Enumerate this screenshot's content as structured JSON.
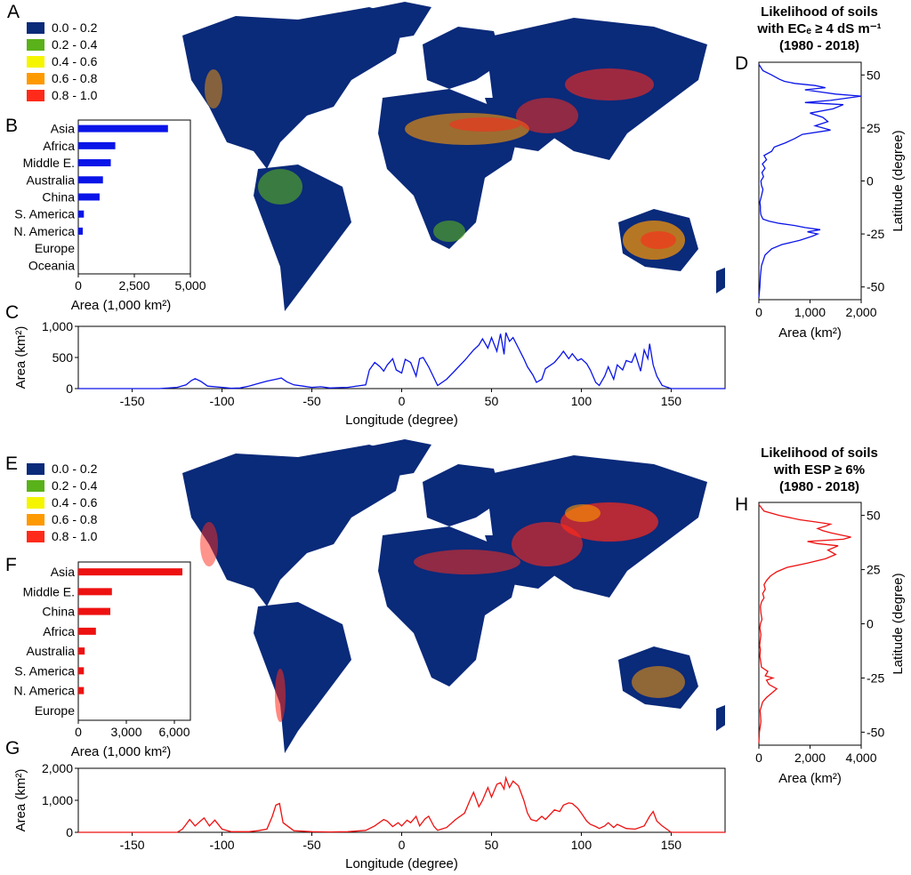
{
  "colors": {
    "top": "#0a14e8",
    "bottom": "#ee1111",
    "land_base": "#0a2a7a",
    "axis": "#000000"
  },
  "panel_labels": {
    "A": "A",
    "B": "B",
    "C": "C",
    "D": "D",
    "E": "E",
    "F": "F",
    "G": "G",
    "H": "H"
  },
  "legend": {
    "items": [
      {
        "label": "0.0 - 0.2",
        "color": "#0a2a7a"
      },
      {
        "label": "0.2 - 0.4",
        "color": "#5ab21a"
      },
      {
        "label": "0.4 - 0.6",
        "color": "#f5f500"
      },
      {
        "label": "0.6 - 0.8",
        "color": "#ff9900"
      },
      {
        "label": "0.8 - 1.0",
        "color": "#ff2a1a"
      }
    ]
  },
  "titles": {
    "top": [
      "Likelihood of soils",
      "with ECₑ ≥ 4 dS m⁻¹",
      "(1980 - 2018)"
    ],
    "bottom": [
      "Likelihood of soils",
      "with ESP ≥ 6%",
      "(1980 - 2018)"
    ]
  },
  "chart_data": [
    {
      "id": "B",
      "type": "bar",
      "orientation": "horizontal",
      "categories": [
        "Asia",
        "Africa",
        "Middle E.",
        "Australia",
        "China",
        "S. America",
        "N. America",
        "Europe",
        "Oceania"
      ],
      "values": [
        4000,
        1650,
        1450,
        1100,
        950,
        250,
        200,
        0,
        0
      ],
      "xlabel": "Area (1,000 km²)",
      "xlim": [
        0,
        5000
      ],
      "xticks": [
        0,
        2500,
        5000
      ],
      "xtick_labels": [
        "0",
        "2,500",
        "5,000"
      ]
    },
    {
      "id": "C",
      "type": "line",
      "xlabel": "Longitude (degree)",
      "ylabel": "Area (km²)",
      "xlim": [
        -180,
        180
      ],
      "ylim": [
        0,
        1000
      ],
      "xticks": [
        -150,
        -100,
        -50,
        0,
        50,
        100,
        150
      ],
      "xtick_labels": [
        "-150",
        "-100",
        "-50",
        "0",
        "50",
        "100",
        "150"
      ],
      "yticks": [
        0,
        500,
        1000
      ],
      "ytick_labels": [
        "0",
        "500",
        "1,000"
      ],
      "x": [
        -180,
        -135,
        -125,
        -120,
        -117,
        -115,
        -112,
        -108,
        -100,
        -95,
        -90,
        -85,
        -80,
        -75,
        -70,
        -67,
        -64,
        -60,
        -55,
        -50,
        -45,
        -40,
        -30,
        -20,
        -18,
        -15,
        -12,
        -10,
        -8,
        -5,
        -3,
        0,
        2,
        5,
        8,
        10,
        12,
        15,
        20,
        25,
        30,
        35,
        40,
        43,
        45,
        48,
        50,
        53,
        55,
        57,
        58,
        60,
        62,
        65,
        68,
        70,
        73,
        75,
        78,
        80,
        85,
        88,
        90,
        93,
        95,
        98,
        100,
        103,
        105,
        108,
        110,
        113,
        115,
        118,
        120,
        123,
        125,
        128,
        130,
        133,
        135,
        137,
        138,
        140,
        142,
        145,
        150,
        180
      ],
      "y": [
        0,
        0,
        20,
        60,
        130,
        160,
        120,
        40,
        20,
        5,
        10,
        40,
        80,
        120,
        150,
        170,
        110,
        60,
        40,
        20,
        30,
        10,
        20,
        60,
        300,
        420,
        350,
        280,
        380,
        480,
        300,
        250,
        470,
        420,
        200,
        480,
        500,
        350,
        50,
        150,
        300,
        450,
        620,
        700,
        800,
        650,
        820,
        600,
        880,
        550,
        900,
        760,
        820,
        650,
        480,
        350,
        220,
        100,
        150,
        320,
        420,
        520,
        600,
        480,
        560,
        450,
        480,
        400,
        300,
        100,
        50,
        200,
        350,
        150,
        380,
        300,
        450,
        420,
        560,
        280,
        620,
        480,
        720,
        380,
        200,
        50,
        0,
        0
      ]
    },
    {
      "id": "D",
      "type": "line",
      "orientation": "vertical",
      "xlabel": "Area (km²)",
      "ylabel": "Latitude (degree)",
      "xlim": [
        0,
        2000
      ],
      "ylim": [
        -56,
        56
      ],
      "xticks": [
        0,
        1000,
        2000
      ],
      "xtick_labels": [
        "0",
        "1,000",
        "2,000"
      ],
      "yticks": [
        -50,
        -25,
        0,
        25,
        50
      ],
      "ytick_labels": [
        "-50",
        "-25",
        "0",
        "25",
        "50"
      ],
      "y": [
        -55,
        -50,
        -45,
        -40,
        -35,
        -32,
        -30,
        -28,
        -26,
        -25,
        -24,
        -23,
        -22,
        -21,
        -20,
        -19,
        -18,
        -16,
        -14,
        -12,
        -10,
        -8,
        -6,
        -4,
        -2,
        0,
        2,
        4,
        6,
        8,
        10,
        12,
        14,
        16,
        18,
        20,
        22,
        24,
        26,
        28,
        30,
        32,
        34,
        36,
        37,
        38,
        39,
        40,
        41,
        42,
        43,
        44,
        45,
        46,
        47,
        48,
        50,
        52,
        55
      ],
      "x": [
        0,
        20,
        30,
        50,
        120,
        250,
        450,
        800,
        1050,
        1150,
        950,
        1200,
        900,
        700,
        400,
        200,
        80,
        40,
        30,
        30,
        20,
        40,
        60,
        80,
        50,
        40,
        90,
        60,
        120,
        70,
        150,
        100,
        250,
        300,
        520,
        700,
        850,
        1400,
        1100,
        1350,
        1250,
        1000,
        1450,
        1650,
        900,
        1400,
        1700,
        2000,
        1500,
        1200,
        900,
        1300,
        1100,
        700,
        500,
        400,
        250,
        80,
        0
      ]
    },
    {
      "id": "F",
      "type": "bar",
      "orientation": "horizontal",
      "categories": [
        "Asia",
        "Middle E.",
        "China",
        "Africa",
        "Australia",
        "S. America",
        "N. America",
        "Europe"
      ],
      "values": [
        6500,
        2100,
        2000,
        1100,
        400,
        350,
        350,
        0
      ],
      "xlabel": "Area (1,000 km²)",
      "xlim": [
        0,
        7000
      ],
      "xticks": [
        0,
        3000,
        6000
      ],
      "xtick_labels": [
        "0",
        "3,000",
        "6,000"
      ]
    },
    {
      "id": "G",
      "type": "line",
      "xlabel": "Longitude (degree)",
      "ylabel": "Area (km²)",
      "xlim": [
        -180,
        180
      ],
      "ylim": [
        0,
        2000
      ],
      "xticks": [
        -150,
        -100,
        -50,
        0,
        50,
        100,
        150
      ],
      "xtick_labels": [
        "-150",
        "-100",
        "-50",
        "0",
        "50",
        "100",
        "150"
      ],
      "yticks": [
        0,
        1000,
        2000
      ],
      "ytick_labels": [
        "0",
        "1,000",
        "2,000"
      ],
      "x": [
        -180,
        -125,
        -122,
        -120,
        -118,
        -115,
        -112,
        -110,
        -107,
        -104,
        -100,
        -95,
        -85,
        -80,
        -75,
        -72,
        -70,
        -68,
        -66,
        -60,
        -50,
        -40,
        -30,
        -20,
        -15,
        -10,
        -8,
        -5,
        -2,
        0,
        3,
        5,
        8,
        10,
        13,
        15,
        18,
        20,
        25,
        30,
        35,
        38,
        40,
        43,
        45,
        48,
        50,
        53,
        55,
        57,
        58,
        60,
        62,
        65,
        68,
        70,
        72,
        75,
        78,
        80,
        85,
        88,
        90,
        93,
        95,
        98,
        100,
        103,
        105,
        108,
        110,
        113,
        115,
        118,
        120,
        125,
        130,
        135,
        138,
        140,
        142,
        145,
        150,
        180
      ],
      "y": [
        0,
        0,
        100,
        250,
        400,
        200,
        350,
        450,
        200,
        380,
        100,
        20,
        20,
        50,
        100,
        500,
        850,
        900,
        300,
        50,
        20,
        10,
        20,
        60,
        200,
        400,
        350,
        180,
        300,
        200,
        380,
        300,
        500,
        200,
        420,
        500,
        180,
        60,
        150,
        400,
        600,
        1000,
        1250,
        800,
        1000,
        1400,
        1100,
        1500,
        1550,
        1350,
        1700,
        1400,
        1600,
        1450,
        1000,
        600,
        400,
        350,
        500,
        400,
        700,
        650,
        850,
        920,
        900,
        750,
        600,
        350,
        250,
        180,
        120,
        200,
        300,
        150,
        250,
        120,
        100,
        200,
        500,
        650,
        350,
        200,
        0,
        0
      ]
    },
    {
      "id": "H",
      "type": "line",
      "orientation": "vertical",
      "xlabel": "Area (km²)",
      "ylabel": "Latitude (degree)",
      "xlim": [
        0,
        4000
      ],
      "ylim": [
        -56,
        56
      ],
      "xticks": [
        0,
        2000,
        4000
      ],
      "xtick_labels": [
        "0",
        "2,000",
        "4,000"
      ],
      "yticks": [
        -50,
        -25,
        0,
        25,
        50
      ],
      "ytick_labels": [
        "-50",
        "-25",
        "0",
        "25",
        "50"
      ],
      "y": [
        -55,
        -50,
        -45,
        -40,
        -36,
        -34,
        -32,
        -30,
        -28,
        -26,
        -25,
        -24,
        -22,
        -20,
        -18,
        -15,
        -12,
        -10,
        -8,
        -5,
        -2,
        0,
        2,
        5,
        8,
        10,
        12,
        14,
        16,
        18,
        20,
        22,
        24,
        26,
        28,
        30,
        32,
        34,
        36,
        37,
        38,
        39,
        40,
        41,
        42,
        43,
        44,
        45,
        46,
        47,
        48,
        50,
        52,
        55
      ],
      "x": [
        0,
        20,
        80,
        50,
        150,
        300,
        500,
        700,
        400,
        300,
        550,
        250,
        350,
        100,
        80,
        40,
        60,
        30,
        50,
        80,
        40,
        60,
        120,
        80,
        60,
        100,
        200,
        150,
        250,
        200,
        300,
        450,
        700,
        1100,
        1900,
        2600,
        3000,
        2700,
        3100,
        2300,
        1900,
        3300,
        3600,
        3200,
        2800,
        2500,
        2300,
        2600,
        2800,
        2200,
        1600,
        800,
        200,
        0
      ]
    }
  ]
}
